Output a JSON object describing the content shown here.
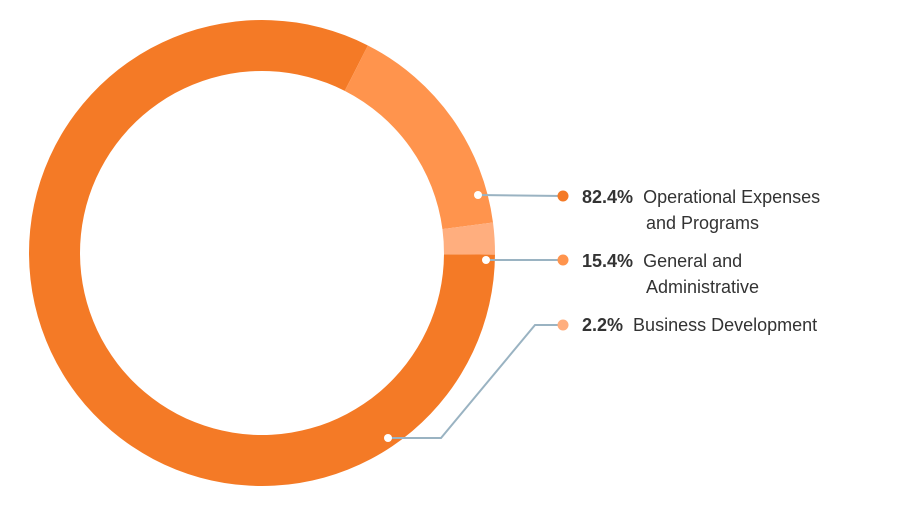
{
  "chart_data": {
    "type": "pie",
    "variant": "donut",
    "legend": "right",
    "slices": [
      {
        "percent_label": "82.4%",
        "value": 82.4,
        "label_lines": [
          "Operational Expenses",
          "and Programs"
        ],
        "color": "#F47A26"
      },
      {
        "percent_label": "15.4%",
        "value": 15.4,
        "label_lines": [
          "General and",
          "Administrative"
        ],
        "color": "#FF944D"
      },
      {
        "percent_label": "2.2%",
        "value": 2.2,
        "label_lines": [
          "Business Development"
        ],
        "color": "#FFAE7E"
      }
    ],
    "connector_color": "#9AB3C2"
  }
}
